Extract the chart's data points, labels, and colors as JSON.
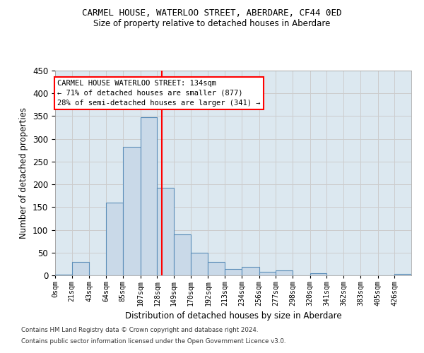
{
  "title1": "CARMEL HOUSE, WATERLOO STREET, ABERDARE, CF44 0ED",
  "title2": "Size of property relative to detached houses in Aberdare",
  "xlabel": "Distribution of detached houses by size in Aberdare",
  "ylabel": "Number of detached properties",
  "bin_edges": [
    0,
    21,
    43,
    64,
    85,
    107,
    128,
    149,
    170,
    192,
    213,
    234,
    256,
    277,
    298,
    320,
    341,
    362,
    383,
    405,
    426,
    447
  ],
  "bin_labels": [
    "0sqm",
    "21sqm",
    "43sqm",
    "64sqm",
    "85sqm",
    "107sqm",
    "128sqm",
    "149sqm",
    "170sqm",
    "192sqm",
    "213sqm",
    "234sqm",
    "256sqm",
    "277sqm",
    "298sqm",
    "320sqm",
    "341sqm",
    "362sqm",
    "383sqm",
    "405sqm",
    "426sqm"
  ],
  "counts": [
    2,
    30,
    0,
    160,
    283,
    348,
    193,
    90,
    50,
    30,
    14,
    19,
    8,
    11,
    0,
    5,
    0,
    0,
    0,
    0,
    3
  ],
  "bar_color": "#c9d9e8",
  "bar_edge_color": "#5b8db8",
  "vline_x": 134,
  "vline_color": "red",
  "annotation_text": "CARMEL HOUSE WATERLOO STREET: 134sqm\n← 71% of detached houses are smaller (877)\n28% of semi-detached houses are larger (341) →",
  "annotation_box_color": "white",
  "annotation_box_edge": "red",
  "ylim": [
    0,
    450
  ],
  "yticks": [
    0,
    50,
    100,
    150,
    200,
    250,
    300,
    350,
    400,
    450
  ],
  "grid_color": "#cccccc",
  "footer1": "Contains HM Land Registry data © Crown copyright and database right 2024.",
  "footer2": "Contains public sector information licensed under the Open Government Licence v3.0.",
  "bg_color": "#dce8f0"
}
